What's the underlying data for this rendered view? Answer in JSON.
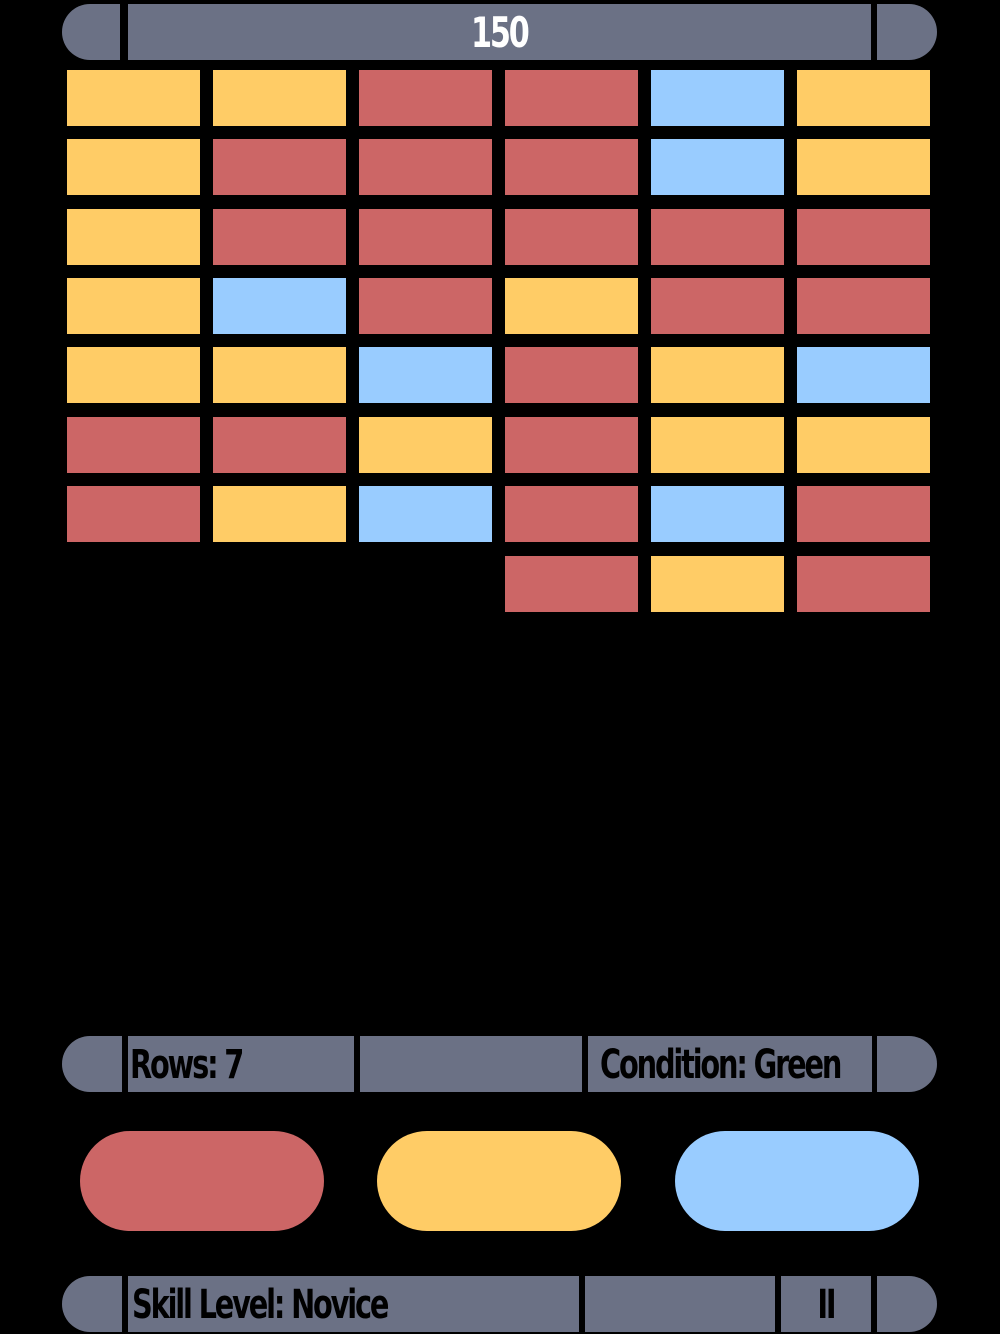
{
  "colors": {
    "red": "#cc6666",
    "yellow": "#ffcc66",
    "blue": "#99ccff",
    "panel": "#6b7185"
  },
  "score": "150",
  "status": {
    "rows": "Rows: 7",
    "condition": "Condition: Green"
  },
  "footer": {
    "skill": "Skill Level: Novice",
    "pause": "II"
  },
  "bricks": [
    [
      "yellow",
      "yellow",
      "red",
      "red",
      "blue",
      "yellow"
    ],
    [
      "yellow",
      "red",
      "red",
      "red",
      "blue",
      "yellow"
    ],
    [
      "yellow",
      "red",
      "red",
      "red",
      "red",
      "red"
    ],
    [
      "yellow",
      "blue",
      "red",
      "yellow",
      "red",
      "red"
    ],
    [
      "yellow",
      "yellow",
      "blue",
      "red",
      "yellow",
      "blue"
    ],
    [
      "red",
      "red",
      "yellow",
      "red",
      "yellow",
      "yellow"
    ],
    [
      "red",
      "yellow",
      "blue",
      "red",
      "blue",
      "red"
    ],
    [
      null,
      null,
      null,
      "red",
      "yellow",
      "red"
    ]
  ],
  "buttons": [
    "red",
    "yellow",
    "blue"
  ]
}
